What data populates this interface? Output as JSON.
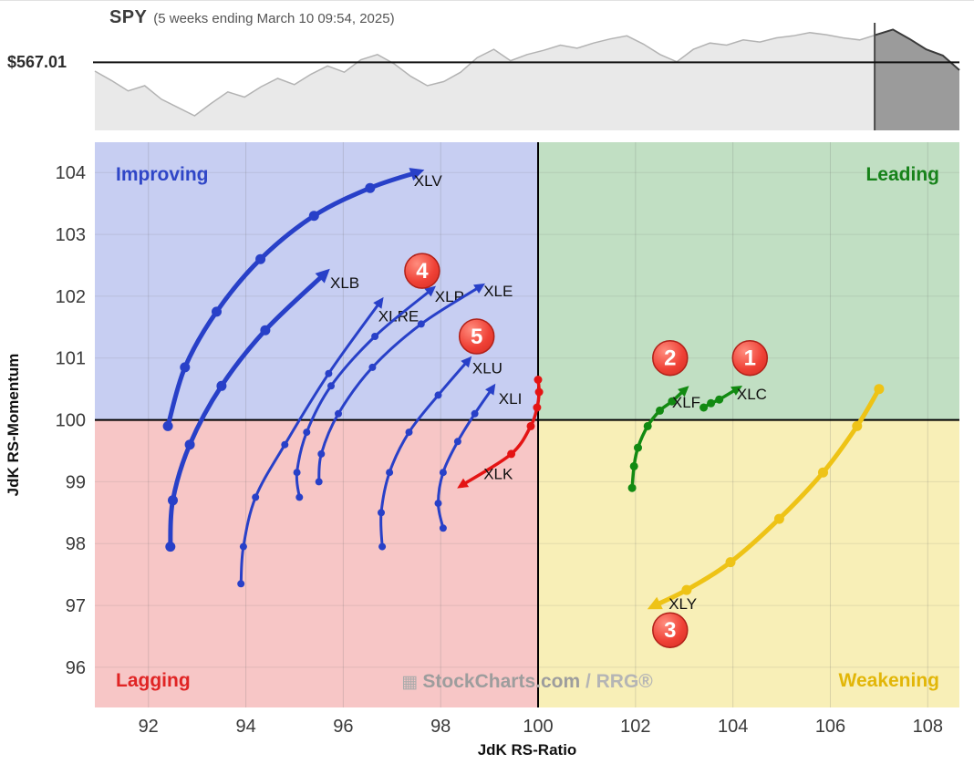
{
  "header": {
    "symbol": "SPY",
    "subtitle": "(5 weeks ending March 10 09:54, 2025)",
    "price_label": "$567.01"
  },
  "watermark": {
    "icon": "▦",
    "brand": "StockCharts.com",
    "suffix": " / RRG®"
  },
  "chart_data": [
    {
      "type": "area",
      "name": "spy-price-sparkline",
      "title": "SPY",
      "subtitle": "(5 weeks ending March 10 09:54, 2025)",
      "level_label": "$567.01",
      "level_norm": 0.655,
      "highlight_start_frac": 0.902,
      "values_norm": [
        0.57,
        0.48,
        0.38,
        0.43,
        0.3,
        0.22,
        0.14,
        0.26,
        0.37,
        0.32,
        0.42,
        0.5,
        0.44,
        0.54,
        0.62,
        0.56,
        0.68,
        0.73,
        0.64,
        0.52,
        0.43,
        0.47,
        0.56,
        0.7,
        0.78,
        0.67,
        0.73,
        0.77,
        0.82,
        0.79,
        0.84,
        0.88,
        0.91,
        0.83,
        0.73,
        0.66,
        0.78,
        0.84,
        0.82,
        0.87,
        0.85,
        0.89,
        0.91,
        0.94,
        0.92,
        0.89,
        0.87,
        0.92,
        0.97,
        0.88,
        0.78,
        0.72,
        0.58
      ],
      "colors": {
        "area": "#e9e9e9",
        "line": "#b3b3b3",
        "highlight_area": "#9b9b9b",
        "highlight_line": "#3a3a3a",
        "level_line": "#111111",
        "boundary_line": "#4a4a4a"
      }
    },
    {
      "type": "scatter",
      "name": "relative-rotation-graph",
      "xlabel": "JdK RS-Ratio",
      "ylabel": "JdK RS-Momentum",
      "xlim": [
        90.9,
        108.65
      ],
      "ylim": [
        95.35,
        104.49
      ],
      "xticks": [
        92,
        94,
        96,
        98,
        100,
        102,
        104,
        106,
        108
      ],
      "yticks": [
        96,
        97,
        98,
        99,
        100,
        101,
        102,
        103,
        104
      ],
      "center": {
        "x": 100,
        "y": 100
      },
      "quadrants": [
        {
          "id": "improving",
          "label": "Improving",
          "fill": "#c7cef2",
          "text_color": "#2f46c7"
        },
        {
          "id": "leading",
          "label": "Leading",
          "fill": "#c1dfc3",
          "text_color": "#17821a"
        },
        {
          "id": "lagging",
          "label": "Lagging",
          "fill": "#f7c6c6",
          "text_color": "#e02424"
        },
        {
          "id": "weakening",
          "label": "Weakening",
          "fill": "#f8efb7",
          "text_color": "#e2b608"
        }
      ],
      "series": [
        {
          "name": "XLV",
          "color": "#2840c8",
          "width": 5,
          "dot_r": 5.5,
          "label_x": 97.45,
          "label_y": 103.78,
          "points": [
            [
              92.4,
              99.9
            ],
            [
              92.75,
              100.85
            ],
            [
              93.4,
              101.75
            ],
            [
              94.3,
              102.6
            ],
            [
              95.4,
              103.3
            ],
            [
              96.55,
              103.75
            ],
            [
              97.5,
              104.0
            ]
          ]
        },
        {
          "name": "XLB",
          "color": "#2840c8",
          "width": 5,
          "dot_r": 5.5,
          "label_x": 95.73,
          "label_y": 102.13,
          "points": [
            [
              92.45,
              97.95
            ],
            [
              92.5,
              98.7
            ],
            [
              92.85,
              99.6
            ],
            [
              93.5,
              100.55
            ],
            [
              94.4,
              101.45
            ],
            [
              95.6,
              102.35
            ]
          ]
        },
        {
          "name": "XLRE",
          "color": "#2840c8",
          "width": 3,
          "dot_r": 4,
          "label_x": 96.72,
          "label_y": 101.59,
          "points": [
            [
              93.9,
              97.35
            ],
            [
              93.95,
              97.95
            ],
            [
              94.2,
              98.75
            ],
            [
              94.8,
              99.6
            ],
            [
              95.7,
              100.75
            ],
            [
              96.75,
              101.9
            ]
          ]
        },
        {
          "name": "XLP",
          "color": "#2840c8",
          "width": 3,
          "dot_r": 4,
          "label_x": 97.88,
          "label_y": 101.91,
          "points": [
            [
              95.1,
              98.75
            ],
            [
              95.05,
              99.15
            ],
            [
              95.25,
              99.8
            ],
            [
              95.75,
              100.55
            ],
            [
              96.65,
              101.35
            ],
            [
              97.8,
              102.1
            ]
          ]
        },
        {
          "name": "XLE",
          "color": "#2840c8",
          "width": 3,
          "dot_r": 4,
          "label_x": 98.88,
          "label_y": 102.0,
          "points": [
            [
              95.5,
              99.0
            ],
            [
              95.55,
              99.45
            ],
            [
              95.9,
              100.1
            ],
            [
              96.6,
              100.85
            ],
            [
              97.6,
              101.55
            ],
            [
              98.8,
              102.15
            ]
          ]
        },
        {
          "name": "XLU",
          "color": "#2840c8",
          "width": 3,
          "dot_r": 4,
          "label_x": 98.65,
          "label_y": 100.75,
          "points": [
            [
              96.8,
              97.95
            ],
            [
              96.78,
              98.5
            ],
            [
              96.95,
              99.15
            ],
            [
              97.35,
              99.8
            ],
            [
              97.95,
              100.4
            ],
            [
              98.55,
              100.95
            ]
          ]
        },
        {
          "name": "XLI",
          "color": "#2840c8",
          "width": 3,
          "dot_r": 4,
          "label_x": 99.19,
          "label_y": 100.26,
          "points": [
            [
              98.05,
              98.25
            ],
            [
              97.95,
              98.65
            ],
            [
              98.05,
              99.15
            ],
            [
              98.35,
              99.65
            ],
            [
              98.7,
              100.1
            ],
            [
              99.05,
              100.5
            ]
          ]
        },
        {
          "name": "XLK",
          "color": "#e41414",
          "width": 3.5,
          "dot_r": 4.5,
          "label_x": 98.88,
          "label_y": 99.04,
          "points": [
            [
              100.0,
              100.65
            ],
            [
              100.02,
              100.45
            ],
            [
              99.98,
              100.2
            ],
            [
              99.85,
              99.9
            ],
            [
              99.45,
              99.45
            ],
            [
              98.45,
              98.95
            ]
          ]
        },
        {
          "name": "XLF",
          "color": "#128a12",
          "width": 3.5,
          "dot_r": 4.5,
          "label_x": 102.75,
          "label_y": 100.2,
          "points": [
            [
              101.93,
              98.9
            ],
            [
              101.97,
              99.25
            ],
            [
              102.05,
              99.55
            ],
            [
              102.25,
              99.9
            ],
            [
              102.5,
              100.15
            ],
            [
              102.75,
              100.3
            ],
            [
              103.0,
              100.48
            ]
          ]
        },
        {
          "name": "XLC",
          "color": "#128a12",
          "width": 3.5,
          "dot_r": 4.5,
          "label_x": 104.08,
          "label_y": 100.33,
          "points": [
            [
              103.4,
              100.2
            ],
            [
              103.55,
              100.27
            ],
            [
              103.72,
              100.33
            ],
            [
              104.08,
              100.5
            ]
          ]
        },
        {
          "name": "XLY",
          "color": "#eec316",
          "width": 5,
          "dot_r": 5.5,
          "label_x": 102.68,
          "label_y": 96.94,
          "points": [
            [
              107.0,
              100.5
            ],
            [
              106.55,
              99.9
            ],
            [
              105.85,
              99.15
            ],
            [
              104.95,
              98.4
            ],
            [
              103.95,
              97.7
            ],
            [
              103.05,
              97.25
            ],
            [
              102.4,
              97.0
            ]
          ]
        }
      ],
      "badges": [
        {
          "n": "1",
          "x": 104.35,
          "y": 101.0
        },
        {
          "n": "2",
          "x": 102.71,
          "y": 101.0
        },
        {
          "n": "3",
          "x": 102.71,
          "y": 96.6
        },
        {
          "n": "4",
          "x": 97.62,
          "y": 102.41
        },
        {
          "n": "5",
          "x": 98.74,
          "y": 101.35
        }
      ],
      "badge_colors": {
        "fill_light": "#ff8d7e",
        "fill_mid": "#ef4136",
        "fill_dark": "#d32b21",
        "stroke": "#b02018",
        "text": "#ffffff"
      }
    }
  ]
}
